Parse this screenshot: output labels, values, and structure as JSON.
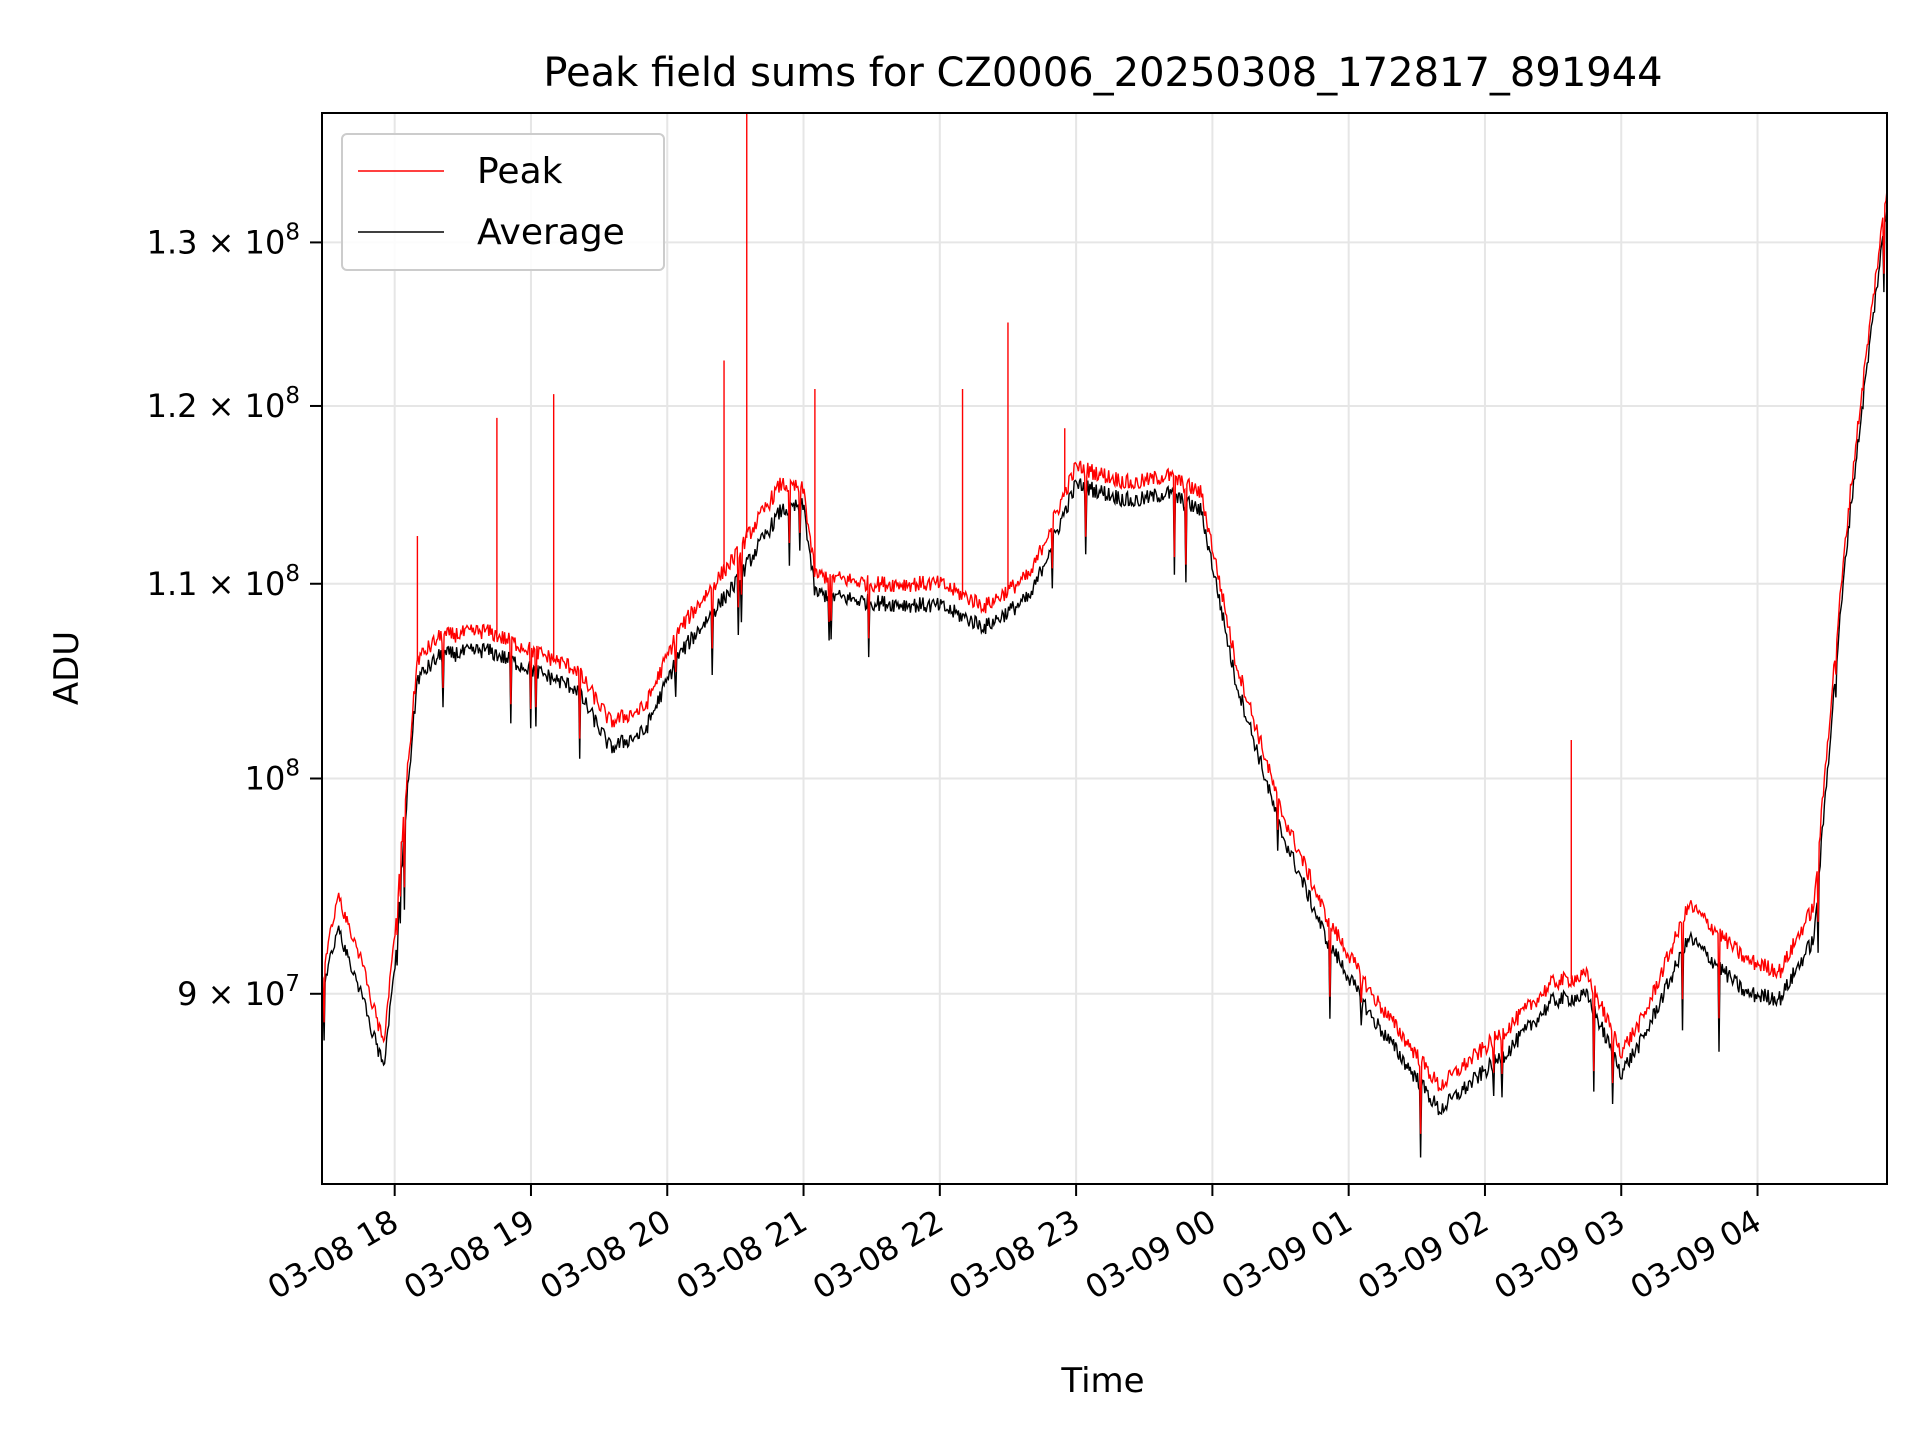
{
  "chart_data": {
    "type": "line",
    "title": "Peak field sums for CZ0006_20250308_172817_891944",
    "xlabel": "Time",
    "ylabel": "ADU",
    "y_scale": "log",
    "grid": true,
    "legend": "top-left",
    "xlim": [
      "2025-03-08 17:28",
      "2025-03-09 04:57"
    ],
    "ylim": [
      82000000,
      138500000
    ],
    "x_ticks": [
      "03-08 18",
      "03-08 19",
      "03-08 20",
      "03-08 21",
      "03-08 22",
      "03-08 23",
      "03-09 00",
      "03-09 01",
      "03-09 02",
      "03-09 03",
      "03-09 04"
    ],
    "y_ticks": [
      {
        "value": 90000000,
        "base": "9",
        "exp": "7"
      },
      {
        "value": 100000000,
        "base": "",
        "exp": "8"
      },
      {
        "value": 110000000,
        "base": "1.1",
        "exp": "8"
      },
      {
        "value": 120000000,
        "base": "1.2",
        "exp": "8"
      },
      {
        "value": 130000000,
        "base": "1.3",
        "exp": "8"
      }
    ],
    "x": [
      "2025-03-08 17:28",
      "2025-03-08 17:35",
      "2025-03-08 17:45",
      "2025-03-08 17:55",
      "2025-03-08 18:00",
      "2025-03-08 18:05",
      "2025-03-08 18:10",
      "2025-03-08 18:20",
      "2025-03-08 18:40",
      "2025-03-08 19:00",
      "2025-03-08 19:20",
      "2025-03-08 19:35",
      "2025-03-08 19:50",
      "2025-03-08 20:05",
      "2025-03-08 20:30",
      "2025-03-08 20:50",
      "2025-03-08 21:00",
      "2025-03-08 21:05",
      "2025-03-08 21:30",
      "2025-03-08 22:00",
      "2025-03-08 22:20",
      "2025-03-08 22:40",
      "2025-03-08 23:00",
      "2025-03-08 23:25",
      "2025-03-08 23:40",
      "2025-03-08 23:55",
      "2025-03-09 00:10",
      "2025-03-09 00:30",
      "2025-03-09 00:50",
      "2025-03-09 01:10",
      "2025-03-09 01:40",
      "2025-03-09 02:10",
      "2025-03-09 02:30",
      "2025-03-09 02:45",
      "2025-03-09 03:00",
      "2025-03-09 03:10",
      "2025-03-09 03:30",
      "2025-03-09 03:55",
      "2025-03-09 04:10",
      "2025-03-09 04:25",
      "2025-03-09 04:40",
      "2025-03-09 04:57"
    ],
    "series": [
      {
        "name": "Peak",
        "color": "#ff0000",
        "values": [
          90500000,
          94500000,
          91500000,
          87800000,
          92500000,
          99500000,
          106000000,
          107200000,
          107500000,
          106500000,
          105500000,
          102800000,
          103500000,
          107500000,
          111500000,
          115500000,
          115200000,
          110500000,
          110000000,
          110000000,
          108800000,
          110500000,
          116500000,
          115500000,
          116000000,
          115000000,
          106000000,
          98500000,
          93500000,
          90000000,
          86000000,
          88500000,
          90500000,
          90800000,
          87500000,
          89000000,
          94000000,
          91500000,
          91000000,
          94000000,
          114000000,
          133500000
        ],
        "spikes": [
          {
            "x": "2025-03-08 18:10",
            "y": 112600000
          },
          {
            "x": "2025-03-08 18:45",
            "y": 119300000
          },
          {
            "x": "2025-03-08 19:10",
            "y": 120700000
          },
          {
            "x": "2025-03-08 20:25",
            "y": 122700000
          },
          {
            "x": "2025-03-08 20:35",
            "y": 138500000
          },
          {
            "x": "2025-03-08 21:05",
            "y": 121000000
          },
          {
            "x": "2025-03-08 22:10",
            "y": 121000000
          },
          {
            "x": "2025-03-08 22:30",
            "y": 125000000
          },
          {
            "x": "2025-03-08 22:55",
            "y": 118700000
          },
          {
            "x": "2025-03-09 02:38",
            "y": 101900000
          }
        ]
      },
      {
        "name": "Average",
        "color": "#000000",
        "values": [
          89800000,
          93000000,
          90000000,
          86800000,
          91000000,
          98500000,
          105000000,
          106200000,
          106500000,
          105500000,
          104500000,
          101500000,
          102300000,
          106200000,
          110000000,
          114000000,
          114300000,
          109500000,
          109000000,
          108800000,
          107700000,
          109300000,
          115500000,
          114500000,
          115000000,
          114000000,
          105000000,
          97500000,
          92500000,
          89000000,
          85000000,
          87500000,
          89700000,
          89900000,
          86600000,
          88100000,
          92500000,
          90000000,
          89800000,
          92500000,
          113000000,
          132300000
        ],
        "spikes": []
      }
    ]
  }
}
